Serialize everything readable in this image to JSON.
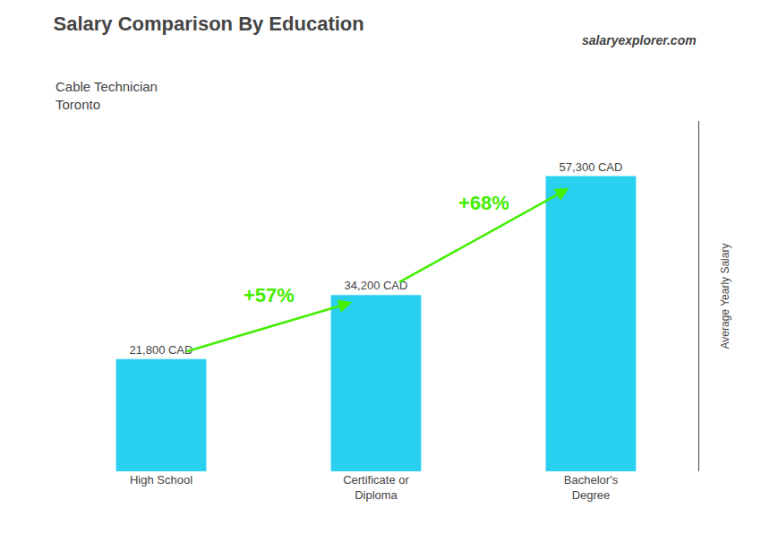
{
  "chart_data": {
    "type": "bar",
    "title": "Salary Comparison By Education",
    "subtitle": [
      "Cable Technician",
      "Toronto"
    ],
    "categories": [
      "High School",
      "Certificate or\nDiploma",
      "Bachelor's\nDegree"
    ],
    "values": [
      21800,
      34200,
      57300
    ],
    "value_labels": [
      "21,800 CAD",
      "34,200 CAD",
      "57,300 CAD"
    ],
    "data_labels": true,
    "color": "#29d0f0",
    "ylabel": "Average Yearly Salary",
    "ylim": [
      0,
      68000
    ],
    "tick_labels": "x",
    "grid": false,
    "annotations": [
      {
        "text": "+57%",
        "color": "#44ee00"
      },
      {
        "text": "+68%",
        "color": "#44ee00"
      },
      {
        "text": "salaryexplorer.com"
      }
    ]
  }
}
